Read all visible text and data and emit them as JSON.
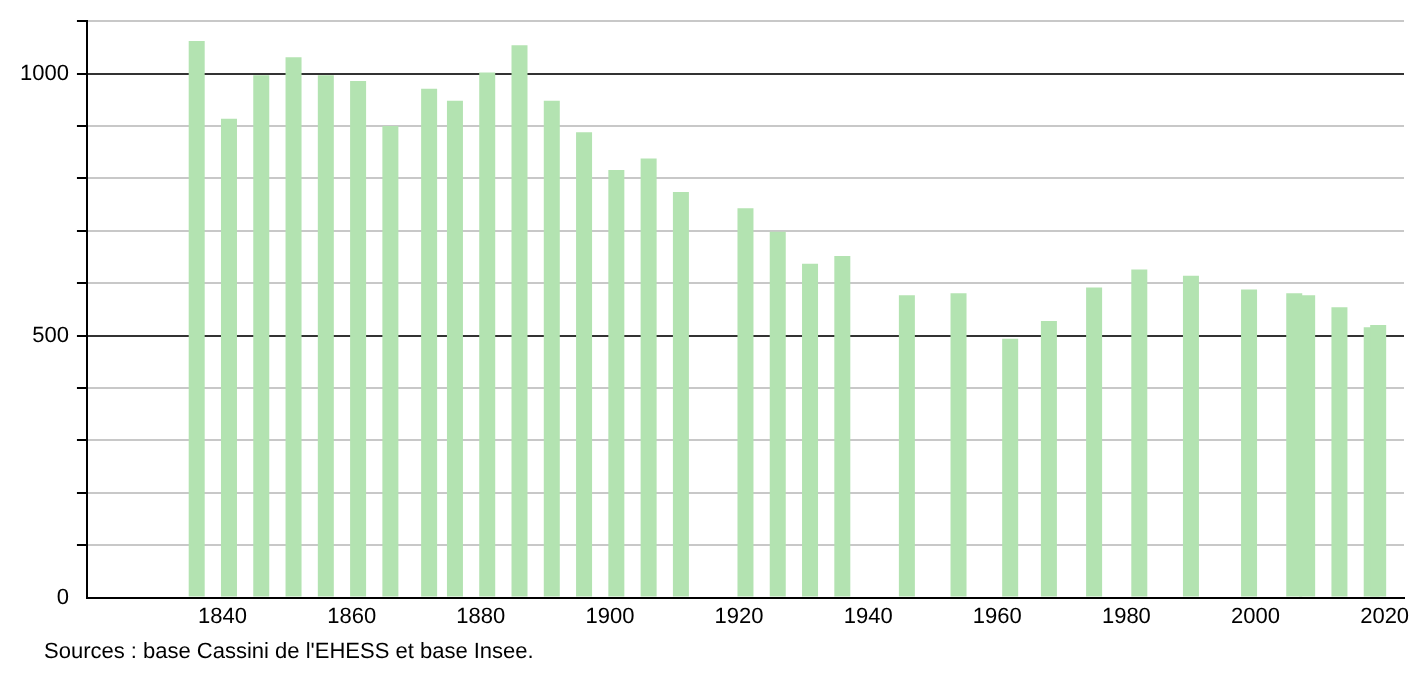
{
  "chart_data": {
    "type": "bar",
    "x": [
      1836,
      1841,
      1846,
      1851,
      1856,
      1861,
      1866,
      1872,
      1876,
      1881,
      1886,
      1891,
      1896,
      1901,
      1906,
      1911,
      1921,
      1926,
      1931,
      1936,
      1946,
      1954,
      1962,
      1968,
      1975,
      1982,
      1990,
      1999,
      2006,
      2008,
      2013,
      2018,
      2019
    ],
    "values": [
      1062,
      914,
      997,
      1031,
      997,
      986,
      900,
      971,
      948,
      1002,
      1054,
      948,
      888,
      816,
      838,
      774,
      743,
      698,
      637,
      652,
      577,
      581,
      494,
      528,
      592,
      626,
      614,
      588,
      581,
      577,
      554,
      516,
      520
    ],
    "color": "#b3e3b1",
    "xlim": [
      1819,
      2023
    ],
    "xticks": [
      1840,
      1860,
      1880,
      1900,
      1920,
      1940,
      1960,
      1980,
      2000,
      2020
    ],
    "ylim": [
      0,
      1100
    ],
    "yticks": [
      0,
      {
        "value": 100,
        "label": null
      },
      {
        "value": 200,
        "label": null
      },
      {
        "value": 300,
        "label": null
      },
      {
        "value": 400,
        "label": null
      },
      500,
      {
        "value": 600,
        "label": null
      },
      {
        "value": 700,
        "label": null
      },
      {
        "value": 800,
        "label": null
      },
      {
        "value": 900,
        "label": null
      },
      1000,
      {
        "value": 1100,
        "label": null
      }
    ],
    "grid": "y",
    "legend": false,
    "annotations": [
      "Sources : base Cassini de l'EHESS et base Insee."
    ]
  }
}
